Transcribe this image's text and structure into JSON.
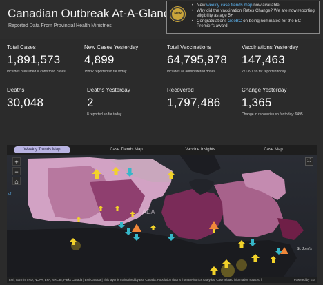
{
  "header": {
    "title": "Canadian Outbreak At-A-Glance",
    "subtitle": "Reported Data From Provincial Health Ministries"
  },
  "news": {
    "badge": "New",
    "items": [
      {
        "before": "New ",
        "link": "weekly case trends map",
        "after": " now available ."
      },
      {
        "before": "Why did the vaccination Rates Change? We are now reporting eligibility as age 5+",
        "link": "",
        "after": ""
      },
      {
        "before": "Congratulations ",
        "link": "GeoBC",
        "after": " on being nominated for the BC Premier's award."
      }
    ]
  },
  "stats": [
    {
      "label": "Total Cases",
      "value": "1,891,573",
      "note": "Includes presumed & confirmed cases"
    },
    {
      "label": "New Cases Yesterday",
      "value": "4,899",
      "note": "15832 reported so far today"
    },
    {
      "label": "Total Vaccinations",
      "value": "64,795,978",
      "note": "Includes all administered doses"
    },
    {
      "label": "Vaccinations Yesterday",
      "value": "147,463",
      "note": "271391 so far reported today"
    },
    {
      "label": "Deaths",
      "value": "30,048",
      "note": ""
    },
    {
      "label": "Deaths Yesterday",
      "value": "2",
      "note": "8 reported so far today"
    },
    {
      "label": "Recovered",
      "value": "1,797,486",
      "note": ""
    },
    {
      "label": "Change Yesterday",
      "value": "1,365",
      "note": "Change in recoveries so far today: 6495"
    }
  ],
  "tabs": [
    "Weekly Trends Map",
    "Case Trends Map",
    "Vaccine Insights",
    "Case Map"
  ],
  "active_tab": "Weekly Trends Map",
  "map": {
    "controls": [
      "+",
      "−",
      "⌂"
    ],
    "labels": [
      "of",
      "St. John's"
    ],
    "watermark": "ADA",
    "attribution": "Esri, Garmin, FAO, NOAA, EPA, NRCan, Parks Canada | Esri Canada | This layer is maintained by Esri Canada. Population data is from Environics Analytics. Case related information sourced fr",
    "powered": "Powered by Esri"
  },
  "colors": {
    "background": "#2b2b2b",
    "link": "#5fb6f2",
    "badge": "#caa53a",
    "active_tab": "#b8b3e2",
    "arrow_up": "#f2d22a",
    "arrow_down": "#36b7c9",
    "warning": "#f0873a"
  },
  "icons": [
    "zoom-in-icon",
    "zoom-out-icon",
    "home-icon",
    "fullscreen-icon",
    "trend-up-arrow-icon",
    "trend-down-arrow-icon",
    "warning-triangle-icon"
  ]
}
